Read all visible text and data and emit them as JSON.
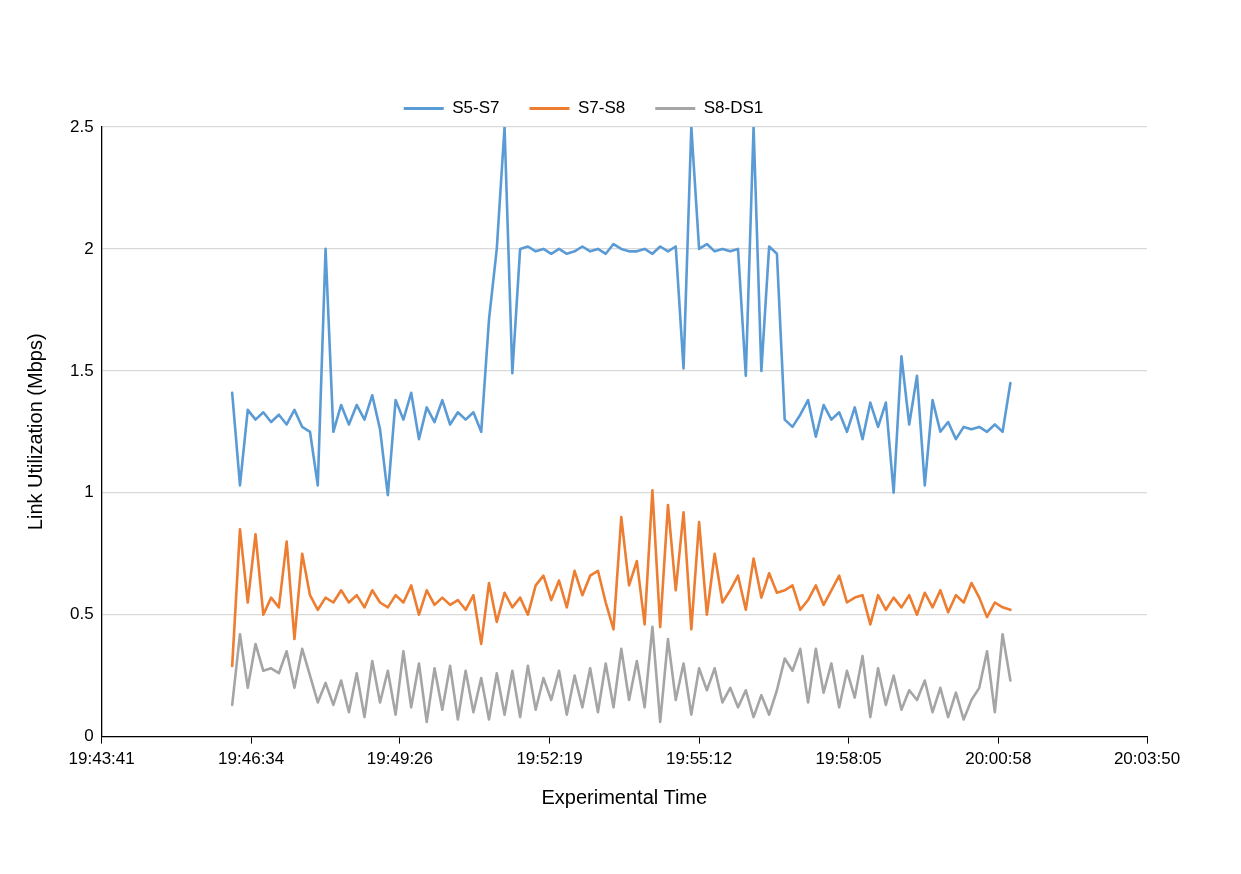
{
  "chart_data": {
    "type": "line",
    "xlabel": "Experimental Time",
    "ylabel": "Link Utilization (Mbps)",
    "x": [
      19.77,
      19.7725,
      19.775,
      19.7775,
      19.78,
      19.7825,
      19.785,
      19.7875,
      19.79,
      19.7925,
      19.795,
      19.7975,
      19.8,
      19.8025,
      19.805,
      19.8075,
      19.81,
      19.8125,
      19.815,
      19.8175,
      19.82,
      19.8225,
      19.825,
      19.8275,
      19.83,
      19.8325,
      19.835,
      19.8375,
      19.84,
      19.8425,
      19.845,
      19.8475,
      19.85,
      19.8525,
      19.855,
      19.8575,
      19.86,
      19.8625,
      19.865,
      19.8675,
      19.87,
      19.8725,
      19.875,
      19.8775,
      19.88,
      19.8825,
      19.885,
      19.8875,
      19.89,
      19.8925,
      19.895,
      19.8975,
      19.9,
      19.9025,
      19.905,
      19.9075,
      19.91,
      19.9125,
      19.915,
      19.9175,
      19.92,
      19.9225,
      19.925,
      19.9275,
      19.93,
      19.9325,
      19.935,
      19.9375,
      19.94,
      19.9425,
      19.945,
      19.9475,
      19.95,
      19.9525,
      19.955,
      19.9575,
      19.96,
      19.9625,
      19.965,
      19.9675,
      19.97,
      19.9725,
      19.975,
      19.9775,
      19.98,
      19.9825,
      19.985,
      19.9875,
      19.99,
      19.9925,
      19.995,
      19.9975,
      20.0,
      20.0025,
      20.005,
      20.0075,
      20.01,
      20.0125,
      20.015,
      20.0175,
      20.02
    ],
    "series": [
      {
        "name": "S5-S7",
        "color": "#5b9bd5",
        "values": [
          1.41,
          1.03,
          1.34,
          1.3,
          1.33,
          1.29,
          1.32,
          1.28,
          1.34,
          1.27,
          1.25,
          1.03,
          2.0,
          1.25,
          1.36,
          1.28,
          1.36,
          1.3,
          1.4,
          1.26,
          0.99,
          1.38,
          1.3,
          1.41,
          1.22,
          1.35,
          1.29,
          1.38,
          1.28,
          1.33,
          1.3,
          1.33,
          1.25,
          1.71,
          2.0,
          2.5,
          1.49,
          2.0,
          2.01,
          1.99,
          2.0,
          1.98,
          2.0,
          1.98,
          1.99,
          2.01,
          1.99,
          2.0,
          1.98,
          2.02,
          2.0,
          1.99,
          1.99,
          2.0,
          1.98,
          2.01,
          1.99,
          2.01,
          1.51,
          2.5,
          2.0,
          2.02,
          1.99,
          2.0,
          1.99,
          2.0,
          1.48,
          2.5,
          1.5,
          2.01,
          1.98,
          1.3,
          1.27,
          1.32,
          1.38,
          1.23,
          1.36,
          1.3,
          1.33,
          1.25,
          1.35,
          1.22,
          1.37,
          1.27,
          1.37,
          1.0,
          1.56,
          1.28,
          1.48,
          1.03,
          1.38,
          1.25,
          1.29,
          1.22,
          1.27,
          1.26,
          1.27,
          1.25,
          1.28,
          1.25,
          1.45
        ]
      },
      {
        "name": "S7-S8",
        "color": "#ed7d31",
        "values": [
          0.29,
          0.85,
          0.55,
          0.83,
          0.5,
          0.57,
          0.53,
          0.8,
          0.4,
          0.75,
          0.58,
          0.52,
          0.57,
          0.55,
          0.6,
          0.55,
          0.58,
          0.53,
          0.6,
          0.55,
          0.53,
          0.58,
          0.55,
          0.62,
          0.5,
          0.6,
          0.54,
          0.57,
          0.54,
          0.56,
          0.52,
          0.58,
          0.38,
          0.63,
          0.47,
          0.59,
          0.53,
          0.57,
          0.5,
          0.62,
          0.66,
          0.56,
          0.64,
          0.53,
          0.68,
          0.58,
          0.66,
          0.68,
          0.55,
          0.44,
          0.9,
          0.62,
          0.72,
          0.46,
          1.01,
          0.45,
          0.95,
          0.6,
          0.92,
          0.44,
          0.88,
          0.5,
          0.75,
          0.55,
          0.6,
          0.66,
          0.52,
          0.73,
          0.57,
          0.67,
          0.59,
          0.6,
          0.62,
          0.52,
          0.56,
          0.62,
          0.54,
          0.6,
          0.66,
          0.55,
          0.57,
          0.58,
          0.46,
          0.58,
          0.52,
          0.57,
          0.53,
          0.58,
          0.5,
          0.59,
          0.53,
          0.6,
          0.51,
          0.58,
          0.55,
          0.63,
          0.57,
          0.49,
          0.55,
          0.53,
          0.52
        ]
      },
      {
        "name": "S8-DS1",
        "color": "#a5a5a5",
        "values": [
          0.13,
          0.42,
          0.2,
          0.38,
          0.27,
          0.28,
          0.26,
          0.35,
          0.2,
          0.36,
          0.25,
          0.14,
          0.22,
          0.13,
          0.23,
          0.1,
          0.26,
          0.08,
          0.31,
          0.14,
          0.27,
          0.09,
          0.35,
          0.12,
          0.3,
          0.06,
          0.28,
          0.11,
          0.29,
          0.07,
          0.27,
          0.1,
          0.24,
          0.07,
          0.26,
          0.09,
          0.27,
          0.08,
          0.29,
          0.11,
          0.24,
          0.15,
          0.27,
          0.09,
          0.25,
          0.12,
          0.28,
          0.1,
          0.3,
          0.12,
          0.36,
          0.15,
          0.31,
          0.12,
          0.45,
          0.06,
          0.4,
          0.15,
          0.3,
          0.09,
          0.28,
          0.19,
          0.28,
          0.14,
          0.2,
          0.12,
          0.19,
          0.08,
          0.17,
          0.09,
          0.19,
          0.32,
          0.27,
          0.36,
          0.14,
          0.36,
          0.18,
          0.3,
          0.12,
          0.27,
          0.16,
          0.33,
          0.08,
          0.28,
          0.13,
          0.25,
          0.11,
          0.19,
          0.15,
          0.23,
          0.1,
          0.2,
          0.08,
          0.18,
          0.07,
          0.15,
          0.2,
          0.35,
          0.1,
          0.42,
          0.23
        ]
      }
    ],
    "xlim": [
      19.72806,
      20.06389
    ],
    "xticks": [
      {
        "value": 19.72806,
        "label": "19:43:41"
      },
      {
        "value": 19.77611,
        "label": "19:46:34"
      },
      {
        "value": 19.82389,
        "label": "19:49:26"
      },
      {
        "value": 19.87194,
        "label": "19:52:19"
      },
      {
        "value": 19.92,
        "label": "19:55:12"
      },
      {
        "value": 19.96806,
        "label": "19:58:05"
      },
      {
        "value": 20.01611,
        "label": "20:00:58"
      },
      {
        "value": 20.06389,
        "label": "20:03:50"
      }
    ],
    "ylim": [
      0,
      2.5
    ],
    "yticks": [
      0,
      0.5,
      1,
      1.5,
      2,
      2.5
    ],
    "grid": "y",
    "legend": "top",
    "marker": "none",
    "line_style": "solid"
  }
}
